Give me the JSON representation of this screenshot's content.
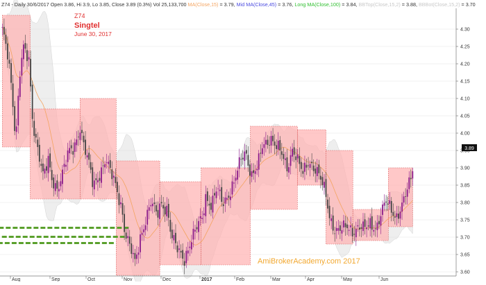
{
  "header": {
    "parts": [
      {
        "text": "Z74 - Daily 30/6/2017 Open 3.86, Hi 3.9, Lo 3.85, Close 3.89 (0.3%) Vol 25,133,700 ",
        "color": "#333333"
      },
      {
        "text": "MA(Close,15)",
        "color": "#f4a460"
      },
      {
        "text": " = 3.79, ",
        "color": "#333333"
      },
      {
        "text": "Mid MA(Close,45)",
        "color": "#4a4ae0"
      },
      {
        "text": " = 3.76, ",
        "color": "#333333"
      },
      {
        "text": "Long MA(Close,100)",
        "color": "#2fbf2f"
      },
      {
        "text": " = 3.84, ",
        "color": "#333333"
      },
      {
        "text": "BBTop(Close,15,2)",
        "color": "#c8c8c8"
      },
      {
        "text": " = 3.88, ",
        "color": "#333333"
      },
      {
        "text": "BBBot(Close,15,2)",
        "color": "#c8c8c8"
      },
      {
        "text": " = 3.70",
        "color": "#333333"
      }
    ]
  },
  "labels": {
    "symbol": "Z74",
    "name": "Singtel",
    "date": "June 30, 2017",
    "watermark": "AmiBrokerAcademy.com  2017",
    "last_price": "3.89"
  },
  "colors": {
    "box_fill": "#ffb3b3",
    "box_edge": "#d45050",
    "label_red": "#e03030",
    "watermark": "#f2a830",
    "candle_up": "#8b1a8b",
    "candle_down": "#444444",
    "ma15": "#f4a460",
    "bb_band": "#d9d9d9",
    "support": "#5aa02c"
  },
  "chart_data": {
    "type": "candlestick",
    "y_axis": {
      "range": [
        3.58,
        4.36
      ],
      "ticks": [
        3.6,
        3.65,
        3.7,
        3.75,
        3.8,
        3.85,
        3.9,
        3.95,
        4.0,
        4.05,
        4.1,
        4.15,
        4.2,
        4.25,
        4.3
      ],
      "tick_labels": [
        "3.60",
        "3.65",
        "3.70",
        "3.75",
        "3.80",
        "3.85",
        "3.90",
        "3.95",
        "4.00",
        "4.05",
        "4.10",
        "4.15",
        "4.20",
        "4.25",
        "4.30"
      ],
      "grid": true
    },
    "x_axis": {
      "labels": [
        "Aug",
        "Sep",
        "Oct",
        "Nov",
        "Dec",
        "2017",
        "Feb",
        "Mar",
        "Apr",
        "May",
        "Jun"
      ]
    },
    "range_boxes": [
      {
        "from": "Jul 21",
        "to": "Aug 16",
        "high": 4.34,
        "low": 3.96
      },
      {
        "from": "Aug 16",
        "to": "Sep 26",
        "high": 4.07,
        "low": 3.81
      },
      {
        "from": "Sep 26",
        "to": "Oct 26",
        "high": 4.1,
        "low": 3.81
      },
      {
        "from": "Oct 26",
        "to": "Nov 30",
        "high": 3.92,
        "low": 3.59
      },
      {
        "from": "Nov 30",
        "to": "Jan 2",
        "high": 3.86,
        "low": 3.62
      },
      {
        "from": "Jan 2",
        "to": "Feb 14",
        "high": 3.9,
        "low": 3.62
      },
      {
        "from": "Feb 14",
        "to": "Mar 24",
        "high": 4.02,
        "low": 3.78
      },
      {
        "from": "Mar 24",
        "to": "Apr 18",
        "high": 4.01,
        "low": 3.85
      },
      {
        "from": "Apr 18",
        "to": "May 10",
        "high": 3.95,
        "low": 3.68
      },
      {
        "from": "May 10",
        "to": "Jun 9",
        "high": 3.78,
        "low": 3.69
      },
      {
        "from": "Jun 9",
        "to": "Jun 30",
        "high": 3.9,
        "low": 3.73
      }
    ],
    "support_lines": [
      {
        "price": 3.727,
        "from": "Nov 6",
        "to": "Jul 3"
      },
      {
        "price": 3.701,
        "from": "Nov 3",
        "to": "Jul 1"
      },
      {
        "price": 3.683,
        "from": "Oct 24",
        "to": "Jul 10"
      }
    ],
    "price_path": [
      {
        "date": "Jul 21",
        "close": 4.3
      },
      {
        "date": "Jul 26",
        "close": 4.24
      },
      {
        "date": "Jul 29",
        "close": 4.2
      },
      {
        "date": "Aug 3",
        "close": 4.08
      },
      {
        "date": "Aug 5",
        "close": 3.98
      },
      {
        "date": "Aug 8",
        "close": 4.18
      },
      {
        "date": "Aug 11",
        "close": 4.25
      },
      {
        "date": "Aug 15",
        "close": 4.2
      },
      {
        "date": "Aug 18",
        "close": 4.02
      },
      {
        "date": "Aug 23",
        "close": 3.94
      },
      {
        "date": "Aug 26",
        "close": 3.88
      },
      {
        "date": "Aug 30",
        "close": 3.92
      },
      {
        "date": "Sep 2",
        "close": 3.86
      },
      {
        "date": "Sep 7",
        "close": 3.84
      },
      {
        "date": "Sep 12",
        "close": 3.9
      },
      {
        "date": "Sep 16",
        "close": 3.94
      },
      {
        "date": "Sep 21",
        "close": 3.95
      },
      {
        "date": "Sep 26",
        "close": 4.02
      },
      {
        "date": "Sep 30",
        "close": 3.96
      },
      {
        "date": "Oct 4",
        "close": 3.9
      },
      {
        "date": "Oct 7",
        "close": 3.84
      },
      {
        "date": "Oct 12",
        "close": 3.88
      },
      {
        "date": "Oct 17",
        "close": 3.93
      },
      {
        "date": "Oct 21",
        "close": 3.89
      },
      {
        "date": "Oct 26",
        "close": 3.84
      },
      {
        "date": "Oct 31",
        "close": 3.78
      },
      {
        "date": "Nov 3",
        "close": 3.72
      },
      {
        "date": "Nov 8",
        "close": 3.66
      },
      {
        "date": "Nov 11",
        "close": 3.62
      },
      {
        "date": "Nov 15",
        "close": 3.7
      },
      {
        "date": "Nov 18",
        "close": 3.74
      },
      {
        "date": "Nov 23",
        "close": 3.8
      },
      {
        "date": "Nov 28",
        "close": 3.76
      },
      {
        "date": "Dec 1",
        "close": 3.8
      },
      {
        "date": "Dec 6",
        "close": 3.78
      },
      {
        "date": "Dec 9",
        "close": 3.7
      },
      {
        "date": "Dec 14",
        "close": 3.66
      },
      {
        "date": "Dec 19",
        "close": 3.64
      },
      {
        "date": "Dec 23",
        "close": 3.68
      },
      {
        "date": "Dec 28",
        "close": 3.72
      },
      {
        "date": "Jan 3",
        "close": 3.76
      },
      {
        "date": "Jan 6",
        "close": 3.82
      },
      {
        "date": "Jan 11",
        "close": 3.79
      },
      {
        "date": "Jan 16",
        "close": 3.84
      },
      {
        "date": "Jan 20",
        "close": 3.8
      },
      {
        "date": "Jan 25",
        "close": 3.82
      },
      {
        "date": "Jan 31",
        "close": 3.86
      },
      {
        "date": "Feb 6",
        "close": 3.92
      },
      {
        "date": "Feb 10",
        "close": 3.95
      },
      {
        "date": "Feb 15",
        "close": 3.88
      },
      {
        "date": "Feb 20",
        "close": 3.9
      },
      {
        "date": "Feb 24",
        "close": 3.96
      },
      {
        "date": "Mar 1",
        "close": 3.99
      },
      {
        "date": "Mar 6",
        "close": 3.96
      },
      {
        "date": "Mar 10",
        "close": 3.94
      },
      {
        "date": "Mar 15",
        "close": 3.9
      },
      {
        "date": "Mar 20",
        "close": 3.96
      },
      {
        "date": "Mar 24",
        "close": 3.92
      },
      {
        "date": "Mar 29",
        "close": 3.88
      },
      {
        "date": "Apr 3",
        "close": 3.92
      },
      {
        "date": "Apr 7",
        "close": 3.91
      },
      {
        "date": "Apr 12",
        "close": 3.88
      },
      {
        "date": "Apr 18",
        "close": 3.82
      },
      {
        "date": "Apr 21",
        "close": 3.76
      },
      {
        "date": "Apr 26",
        "close": 3.72
      },
      {
        "date": "May 2",
        "close": 3.72
      },
      {
        "date": "May 5",
        "close": 3.73
      },
      {
        "date": "May 10",
        "close": 3.72
      },
      {
        "date": "May 15",
        "close": 3.73
      },
      {
        "date": "May 19",
        "close": 3.72
      },
      {
        "date": "May 24",
        "close": 3.74
      },
      {
        "date": "May 29",
        "close": 3.73
      },
      {
        "date": "Jun 2",
        "close": 3.76
      },
      {
        "date": "Jun 7",
        "close": 3.8
      },
      {
        "date": "Jun 12",
        "close": 3.78
      },
      {
        "date": "Jun 16",
        "close": 3.76
      },
      {
        "date": "Jun 21",
        "close": 3.79
      },
      {
        "date": "Jun 26",
        "close": 3.84
      },
      {
        "date": "Jun 30",
        "close": 3.89
      }
    ],
    "candles": []
  }
}
